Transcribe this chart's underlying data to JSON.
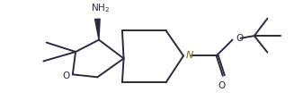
{
  "bg_color": "#ffffff",
  "line_color": "#2b2b3b",
  "n_color": "#8B6914",
  "line_width": 1.4,
  "fig_width": 3.27,
  "fig_height": 1.22,
  "dpi": 100,
  "xlim": [
    0,
    10
  ],
  "ylim": [
    0,
    3.73
  ]
}
